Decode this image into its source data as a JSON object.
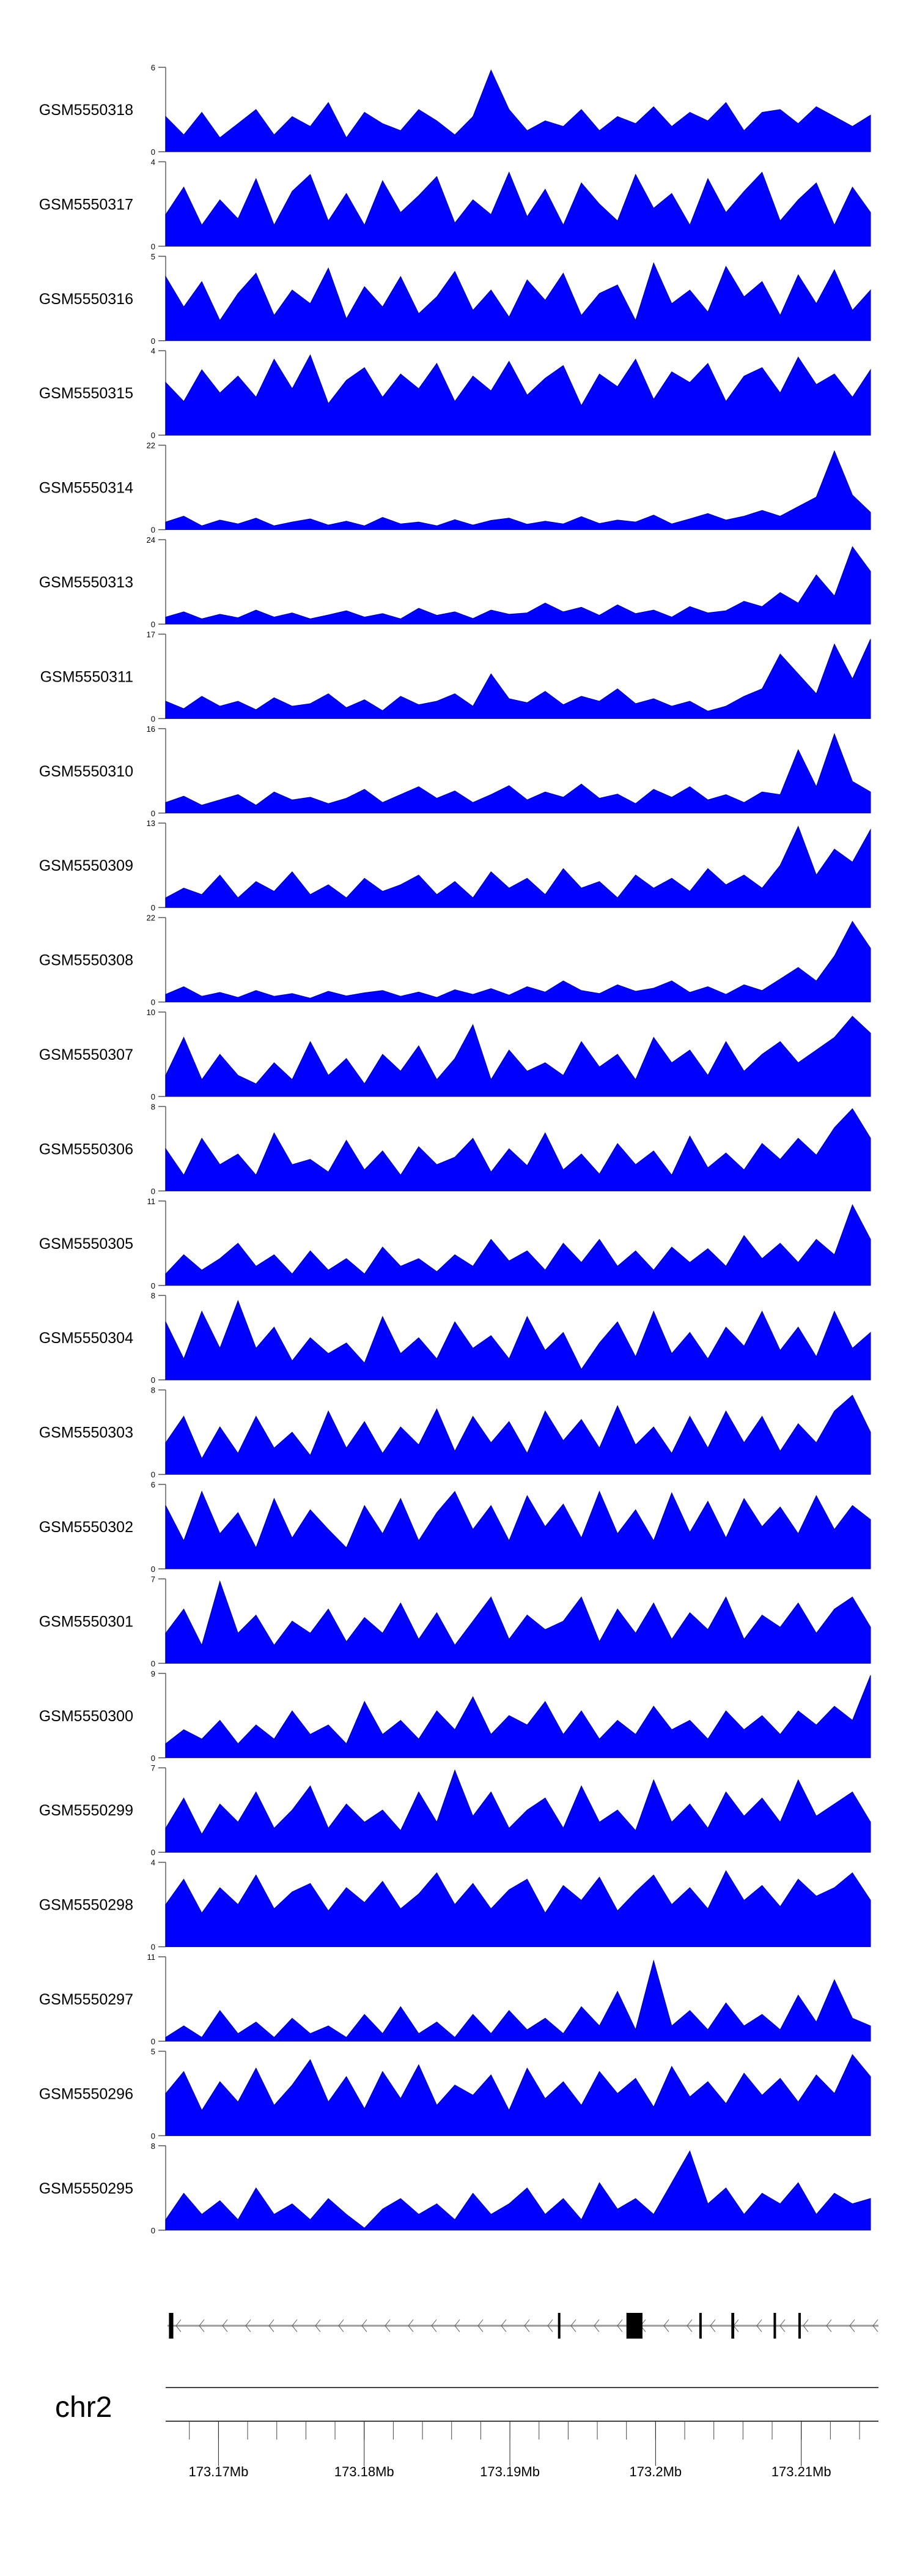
{
  "chart_data": {
    "type": "area",
    "title": "",
    "fill_color": "#0000ff",
    "chromosome": "chr2",
    "xlim_mb": [
      173.1665,
      173.2153
    ],
    "x_tick_labels": [
      "173.17Mb",
      "173.18Mb",
      "173.19Mb",
      "173.2Mb",
      "173.21Mb"
    ],
    "x_tick_values_mb": [
      173.17,
      173.18,
      173.19,
      173.2,
      173.21
    ],
    "minor_tick_step_kb": 2,
    "gene_model": {
      "strand": "-",
      "exons_mb": [
        [
          173.1666,
          173.1669
        ],
        [
          173.1933,
          173.1934
        ],
        [
          173.198,
          173.1991
        ],
        [
          173.203,
          173.2031
        ],
        [
          173.2052,
          173.2054
        ],
        [
          173.2081,
          173.2082
        ],
        [
          173.2098,
          173.2099
        ]
      ]
    },
    "series": [
      {
        "name": "GSM5550318",
        "ymax": 6,
        "values": [
          2.5,
          1.2,
          2.8,
          1,
          2,
          3,
          1.2,
          2.5,
          1.8,
          3.5,
          1,
          2.8,
          2,
          1.5,
          3,
          2.2,
          1.2,
          2.5,
          5.8,
          3,
          1.5,
          2.2,
          1.8,
          3,
          1.5,
          2.5,
          2,
          3.2,
          1.8,
          2.8,
          2.2,
          3.5,
          1.5,
          2.8,
          3,
          2,
          3.2,
          2.5,
          1.8,
          2.6
        ]
      },
      {
        "name": "GSM5550317",
        "ymax": 4,
        "values": [
          1.5,
          2.8,
          1,
          2.2,
          1.3,
          3.2,
          1,
          2.6,
          3.4,
          1.2,
          2.5,
          1,
          3.1,
          1.6,
          2.4,
          3.3,
          1.1,
          2.2,
          1.5,
          3.5,
          1.4,
          2.7,
          1,
          3,
          2,
          1.2,
          3.4,
          1.8,
          2.5,
          1,
          3.2,
          1.6,
          2.6,
          3.5,
          1.2,
          2.2,
          3,
          1,
          2.8,
          1.6
        ]
      },
      {
        "name": "GSM5550316",
        "ymax": 5,
        "values": [
          3.8,
          2,
          3.5,
          1.2,
          2.8,
          4,
          1.5,
          3,
          2.2,
          4.3,
          1.3,
          3.2,
          2,
          3.8,
          1.6,
          2.6,
          4.1,
          1.8,
          3,
          1.4,
          3.6,
          2.4,
          4,
          1.5,
          2.8,
          3.3,
          1.2,
          4.6,
          2.2,
          3,
          1.7,
          4.4,
          2.6,
          3.5,
          1.5,
          3.9,
          2.2,
          4.2,
          1.8,
          3
        ]
      },
      {
        "name": "GSM5550315",
        "ymax": 4,
        "values": [
          2.5,
          1.6,
          3.1,
          2,
          2.8,
          1.8,
          3.6,
          2.2,
          3.8,
          1.5,
          2.6,
          3.2,
          1.8,
          2.9,
          2.2,
          3.4,
          1.6,
          2.8,
          2.1,
          3.5,
          1.9,
          2.7,
          3.3,
          1.4,
          2.9,
          2.3,
          3.6,
          1.7,
          3,
          2.5,
          3.4,
          1.6,
          2.8,
          3.2,
          2,
          3.7,
          2.4,
          2.9,
          1.8,
          3.1
        ]
      },
      {
        "name": "GSM5550314",
        "ymax": 22,
        "values": [
          2,
          3.5,
          1,
          2.5,
          1.5,
          3,
          1,
          2,
          2.8,
          1.2,
          2.2,
          1,
          3.2,
          1.5,
          2,
          1,
          2.6,
          1.2,
          2.4,
          3,
          1.4,
          2.2,
          1.5,
          3.4,
          1.6,
          2.5,
          2,
          3.8,
          1.5,
          2.8,
          4.2,
          2.5,
          3.5,
          5,
          3.5,
          6,
          8.5,
          20.5,
          9,
          4.5
        ]
      },
      {
        "name": "GSM5550313",
        "ymax": 24,
        "values": [
          2,
          3.5,
          1.5,
          2.8,
          1.8,
          4,
          2,
          3.2,
          1.5,
          2.6,
          3.8,
          2,
          3,
          1.5,
          4.5,
          2.5,
          3.5,
          1.6,
          4,
          2.8,
          3.2,
          6,
          3.5,
          4.8,
          2.5,
          5.5,
          3,
          4,
          2,
          5,
          3.2,
          3.8,
          6.5,
          5,
          9,
          6,
          14,
          8,
          22,
          15
        ]
      },
      {
        "name": "GSM5550311",
        "ymax": 17,
        "values": [
          3.5,
          2,
          4.5,
          2.5,
          3.5,
          1.8,
          4.2,
          2.5,
          3,
          5,
          2.2,
          3.8,
          1.6,
          4.5,
          2.8,
          3.5,
          5,
          2.5,
          9,
          4,
          3.2,
          5.5,
          2.8,
          4.5,
          3.5,
          6,
          3,
          4,
          2.5,
          3.5,
          1.5,
          2.5,
          4.5,
          6,
          13,
          9,
          5,
          15,
          8,
          16
        ]
      },
      {
        "name": "GSM5550310",
        "ymax": 16,
        "values": [
          2,
          3.2,
          1.5,
          2.5,
          3.5,
          1.5,
          4,
          2.5,
          3,
          1.8,
          2.8,
          4.5,
          2,
          3.5,
          5,
          2.8,
          4.2,
          2,
          3.5,
          5.2,
          2.5,
          4,
          3,
          5.5,
          2.8,
          3.6,
          1.8,
          4.5,
          3,
          5,
          2.5,
          3.5,
          2,
          4,
          3.5,
          12,
          5,
          15,
          6,
          4
        ]
      },
      {
        "name": "GSM5550309",
        "ymax": 13,
        "values": [
          1.5,
          3,
          2,
          5,
          1.5,
          4,
          2.5,
          5.5,
          2,
          3.5,
          1.5,
          4.5,
          2.5,
          3.5,
          5,
          2,
          4,
          1.5,
          5.5,
          3,
          4.5,
          2,
          6,
          3,
          4,
          1.5,
          5,
          3,
          4.5,
          2.5,
          6,
          3.5,
          5,
          3,
          6.5,
          12.5,
          5,
          9,
          7,
          12
        ]
      },
      {
        "name": "GSM5550308",
        "ymax": 22,
        "values": [
          2,
          4,
          1.5,
          2.5,
          1.2,
          3,
          1.5,
          2.2,
          1,
          2.8,
          1.6,
          2.4,
          3,
          1.5,
          2.6,
          1.2,
          3.2,
          2,
          3.5,
          1.8,
          4,
          2.6,
          5.5,
          3,
          2.2,
          4.5,
          2.8,
          3.6,
          5.5,
          2.5,
          4,
          2,
          4.5,
          3,
          6,
          9,
          5.5,
          12,
          21,
          14
        ]
      },
      {
        "name": "GSM5550307",
        "ymax": 10,
        "values": [
          2.5,
          7,
          2,
          5,
          2.5,
          1.5,
          4,
          2,
          6.5,
          2.5,
          4.5,
          1.5,
          5,
          3,
          6,
          2,
          4.5,
          8.5,
          2,
          5.5,
          3,
          4,
          2.5,
          6.5,
          3.5,
          5,
          2,
          7,
          4,
          5.5,
          2.5,
          6.5,
          3,
          5,
          6.5,
          4,
          5.5,
          7,
          9.5,
          7.5
        ]
      },
      {
        "name": "GSM5550306",
        "ymax": 8,
        "values": [
          4,
          1.5,
          5,
          2.5,
          3.5,
          1.5,
          5.5,
          2.5,
          3,
          1.8,
          4.8,
          2,
          3.8,
          1.5,
          4.2,
          2.5,
          3.2,
          5,
          1.8,
          4,
          2.4,
          5.5,
          2,
          3.5,
          1.6,
          4.5,
          2.5,
          3.8,
          1.5,
          5.2,
          2.2,
          3.6,
          2,
          4.5,
          3,
          5,
          3.4,
          6,
          7.8,
          5
        ]
      },
      {
        "name": "GSM5550305",
        "ymax": 11,
        "values": [
          1.5,
          4,
          2,
          3.5,
          5.5,
          2.5,
          4,
          1.5,
          4.5,
          2,
          3.5,
          1.5,
          5,
          2.5,
          3.5,
          1.8,
          4,
          2.5,
          6,
          3.2,
          4.5,
          2,
          5.5,
          3,
          6,
          2.5,
          4.5,
          2,
          5,
          3,
          4.8,
          2.5,
          6.5,
          3.5,
          5.5,
          3,
          6,
          4,
          10.5,
          6
        ]
      },
      {
        "name": "GSM5550304",
        "ymax": 8,
        "values": [
          5.5,
          2,
          6.5,
          3,
          7.5,
          3,
          5,
          1.8,
          4,
          2.5,
          3.5,
          1.6,
          6,
          2.5,
          4,
          2,
          5.5,
          3,
          4.2,
          2,
          6,
          2.8,
          4.5,
          1,
          3.5,
          5.5,
          2.2,
          6.5,
          2.5,
          4.5,
          2,
          5,
          3.2,
          6.5,
          2.8,
          5,
          2.2,
          6.5,
          3,
          4.5
        ]
      },
      {
        "name": "GSM5550303",
        "ymax": 8,
        "values": [
          3,
          5.5,
          1.5,
          4.5,
          2,
          5.5,
          2.5,
          4,
          1.8,
          6,
          2.5,
          5,
          2,
          4.5,
          2.8,
          6.2,
          2.2,
          5.5,
          3,
          5,
          2,
          6,
          3.2,
          5.2,
          2.5,
          6.5,
          2.8,
          4.5,
          2,
          5.5,
          2.5,
          6,
          3,
          5.5,
          2.2,
          4.8,
          3,
          6,
          7.5,
          4
        ]
      },
      {
        "name": "GSM5550302",
        "ymax": 6,
        "values": [
          4.5,
          2,
          5.5,
          2.5,
          4,
          1.5,
          5,
          2.2,
          4.2,
          2.8,
          1.5,
          4.5,
          2.5,
          5,
          2,
          4,
          5.5,
          2.8,
          4.5,
          2,
          5.2,
          3,
          4.6,
          2.2,
          5.5,
          2.5,
          4.2,
          2,
          5.4,
          2.6,
          4.8,
          2.2,
          5,
          3,
          4.4,
          2.5,
          5.2,
          2.8,
          4.5,
          3.5
        ]
      },
      {
        "name": "GSM5550301",
        "ymax": 7,
        "values": [
          2.5,
          4.5,
          1.5,
          6.8,
          2.5,
          4,
          1.5,
          3.5,
          2.5,
          4.5,
          1.8,
          3.8,
          2.5,
          5,
          2,
          4.2,
          1.5,
          3.5,
          5.5,
          2,
          4,
          2.8,
          3.5,
          5.5,
          1.8,
          4.5,
          2.5,
          5,
          2,
          4.2,
          2.8,
          5.5,
          2,
          4,
          3,
          5,
          2.5,
          4.5,
          5.5,
          3
        ]
      },
      {
        "name": "GSM5550300",
        "ymax": 9,
        "values": [
          1.5,
          3,
          2,
          4,
          1.5,
          3.5,
          2,
          5,
          2.5,
          3.5,
          1.5,
          6,
          2.5,
          4,
          2,
          5,
          3,
          6.5,
          2.5,
          4.5,
          3.5,
          6,
          2.5,
          5,
          2,
          4,
          2.5,
          5.5,
          3,
          4,
          2,
          5,
          3,
          4.5,
          2.5,
          5,
          3.5,
          5.5,
          4,
          8.8
        ]
      },
      {
        "name": "GSM5550299",
        "ymax": 7,
        "values": [
          2,
          4.5,
          1.5,
          4,
          2.5,
          5,
          2,
          3.5,
          5.5,
          2,
          4,
          2.5,
          3.5,
          1.8,
          5,
          2.5,
          6.8,
          3,
          5,
          2,
          3.5,
          4.5,
          2,
          5.5,
          2.5,
          3.5,
          1.8,
          6,
          2.5,
          4,
          2,
          5,
          3,
          4.5,
          2.5,
          6,
          3,
          4,
          5,
          2.5
        ]
      },
      {
        "name": "GSM5550298",
        "ymax": 4,
        "values": [
          2,
          3.2,
          1.6,
          2.8,
          2,
          3.4,
          1.8,
          2.6,
          3,
          1.7,
          2.8,
          2.1,
          3.1,
          1.8,
          2.5,
          3.5,
          2,
          3,
          1.8,
          2.7,
          3.2,
          1.6,
          2.9,
          2.2,
          3.3,
          1.7,
          2.6,
          3.4,
          2,
          2.8,
          1.8,
          3.6,
          2.2,
          2.9,
          1.9,
          3.2,
          2.4,
          2.8,
          3.5,
          2.2
        ]
      },
      {
        "name": "GSM5550297",
        "ymax": 11,
        "values": [
          0.5,
          2,
          0.5,
          4,
          1,
          2.5,
          0.5,
          3,
          1,
          2,
          0.5,
          3.5,
          1,
          4.5,
          1,
          2.5,
          0.5,
          3.5,
          1,
          4,
          1.5,
          3,
          1,
          4.5,
          2,
          6.5,
          1.5,
          10.5,
          2,
          4,
          1.5,
          5,
          2,
          3.5,
          1.5,
          6,
          2.5,
          8,
          3,
          2
        ]
      },
      {
        "name": "GSM5550296",
        "ymax": 5,
        "values": [
          2.5,
          3.8,
          1.5,
          3.2,
          2,
          4,
          1.8,
          3,
          4.5,
          2,
          3.5,
          1.6,
          3.8,
          2.2,
          4.2,
          1.8,
          3,
          2.4,
          3.6,
          1.5,
          4,
          2.2,
          3.2,
          1.8,
          3.8,
          2.5,
          3.4,
          1.7,
          4.1,
          2.3,
          3.2,
          1.9,
          3.7,
          2.4,
          3.4,
          2,
          3.6,
          2.5,
          4.8,
          3.5
        ]
      },
      {
        "name": "GSM5550295",
        "ymax": 8,
        "values": [
          1,
          3.5,
          1.5,
          2.8,
          1,
          4,
          1.5,
          2.5,
          1,
          3,
          1.5,
          0.2,
          2,
          3,
          1.5,
          2.5,
          1,
          3.5,
          1.5,
          2.5,
          4,
          1.5,
          3,
          1,
          4.5,
          2,
          3,
          1.5,
          4.5,
          7.5,
          2.5,
          4,
          1.5,
          3.5,
          2.5,
          4.5,
          1.5,
          3.5,
          2.5,
          3
        ]
      }
    ]
  }
}
